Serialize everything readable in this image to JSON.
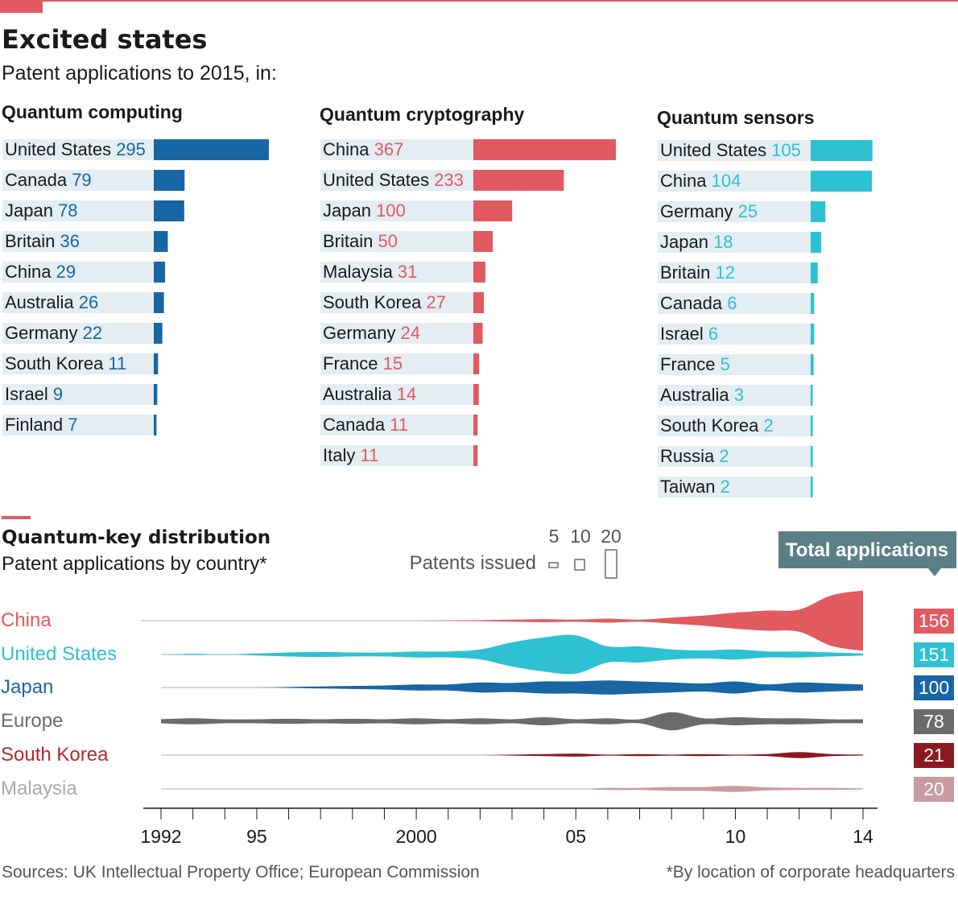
{
  "title": "Excited states",
  "subtitle": "Patent applications to 2015, in:",
  "colors": {
    "accent": "#e05a5f",
    "label_bg": "#e3edf2",
    "computing": "#1866a3",
    "cryptography": "#e05a5f",
    "sensors": "#2ec1d3",
    "text": "#1a1a1a",
    "muted": "#555555"
  },
  "qkd": {
    "title": "Quantum-key distribution",
    "subtitle": "Patent applications by country*",
    "legend_label": "Patents issued",
    "legend_sizes": [
      "5",
      "10",
      "20"
    ],
    "total_label": "Total applications",
    "x_ticks": [
      "1992",
      "95",
      "2000",
      "05",
      "10",
      "14"
    ]
  },
  "footer": {
    "sources": "Sources: UK Intellectual Property Office; European Commission",
    "note": "*By location of corporate headquarters"
  },
  "chart_data": [
    {
      "type": "bar",
      "title": "Quantum computing",
      "color": "#1866a3",
      "categories": [
        "United States",
        "Canada",
        "Japan",
        "Britain",
        "China",
        "Australia",
        "Germany",
        "South Korea",
        "Israel",
        "Finland"
      ],
      "values": [
        295,
        79,
        78,
        36,
        29,
        26,
        22,
        11,
        9,
        7
      ]
    },
    {
      "type": "bar",
      "title": "Quantum cryptography",
      "color": "#e05a5f",
      "categories": [
        "China",
        "United States",
        "Japan",
        "Britain",
        "Malaysia",
        "South Korea",
        "Germany",
        "France",
        "Australia",
        "Canada",
        "Italy"
      ],
      "values": [
        367,
        233,
        100,
        50,
        31,
        27,
        24,
        15,
        14,
        11,
        11
      ]
    },
    {
      "type": "bar",
      "title": "Quantum sensors",
      "color": "#2ec1d3",
      "categories": [
        "United States",
        "China",
        "Germany",
        "Japan",
        "Britain",
        "Canada",
        "Israel",
        "France",
        "Australia",
        "South Korea",
        "Russia",
        "Taiwan"
      ],
      "values": [
        105,
        104,
        25,
        18,
        12,
        6,
        6,
        5,
        3,
        2,
        2,
        2
      ]
    },
    {
      "type": "area",
      "title": "Quantum-key distribution",
      "xlabel": "",
      "ylabel": "Patents issued",
      "xlim": [
        1992,
        2014
      ],
      "years": [
        1992,
        1993,
        1994,
        1995,
        1996,
        1997,
        1998,
        1999,
        2000,
        2001,
        2002,
        2003,
        2004,
        2005,
        2006,
        2007,
        2008,
        2009,
        2010,
        2011,
        2012,
        2013,
        2014
      ],
      "series": [
        {
          "name": "China",
          "color": "#e05a5f",
          "total": "156",
          "values": [
            0,
            0,
            0,
            0,
            0,
            0,
            0,
            0,
            0,
            0.3,
            0.5,
            1,
            1.5,
            1,
            2,
            1,
            3,
            5,
            8,
            10,
            11,
            25,
            30
          ]
        },
        {
          "name": "United States",
          "color": "#2ec1d3",
          "total": "151",
          "values": [
            0,
            0.6,
            0.2,
            1,
            2,
            2.5,
            2,
            2,
            3,
            3,
            5,
            12,
            17,
            19,
            8,
            8,
            5,
            4,
            5,
            3,
            3,
            2,
            1
          ]
        },
        {
          "name": "Japan",
          "color": "#1866a3",
          "total": "100",
          "values": [
            0,
            0,
            0,
            0,
            0.5,
            1,
            1.5,
            2,
            3,
            3,
            5,
            4.5,
            6,
            6,
            7,
            6,
            5,
            4,
            6,
            3,
            5,
            4,
            3
          ]
        },
        {
          "name": "Europe",
          "color": "#6b6b6b",
          "total": "78",
          "values": [
            2,
            3,
            2,
            2,
            2.5,
            2,
            2.5,
            2,
            3,
            2,
            3,
            2,
            4,
            2,
            3,
            2,
            9,
            3,
            4,
            3,
            3,
            2,
            2
          ]
        },
        {
          "name": "South Korea",
          "color": "#8b1a1e",
          "total": "21",
          "values": [
            0,
            0,
            0,
            0,
            0,
            0,
            0,
            0,
            0,
            0,
            0,
            0.5,
            1,
            1.5,
            0.5,
            1,
            0.5,
            1,
            0.5,
            1,
            3,
            1,
            0.5
          ]
        },
        {
          "name": "Malaysia",
          "color": "#c89ba3",
          "total": "20",
          "values": [
            0,
            0,
            0,
            0,
            0,
            0,
            0,
            0,
            0,
            0,
            0,
            0,
            0,
            0,
            1,
            1,
            2,
            2,
            3,
            1.5,
            1,
            1,
            0.5
          ]
        }
      ]
    }
  ]
}
